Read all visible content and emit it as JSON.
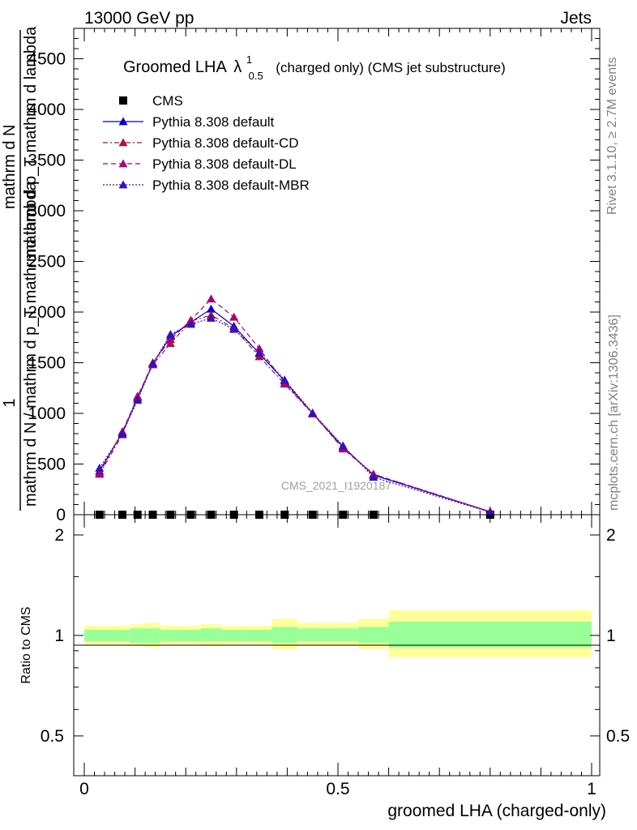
{
  "header": {
    "left": "13000 GeV pp",
    "right": "Jets"
  },
  "side_text": {
    "top": "Rivet 3.1.10, ≥ 2.7M events",
    "bottom": "mcplots.cern.ch [arXiv:1306.3436]"
  },
  "watermark": "CMS_2021_I1920187",
  "chart_data": [
    {
      "type": "line",
      "title_main": "Groomed LHA",
      "title_symbol": "λ",
      "title_sup": "1",
      "title_sub": "0.5",
      "title_rest": "(charged only) (CMS jet substructure)",
      "ylabel_top": "1",
      "ylabel_frac_num": "mathrm d N",
      "ylabel_frac_den": "mathrm d N / mathrm d p_T mathrmd lambda",
      "ylabel_right": "mathrm d p_T mathrm d lambda",
      "ylim": [
        0,
        4800
      ],
      "xlim": [
        0,
        1
      ],
      "yticks": [
        0,
        500,
        1000,
        1500,
        2000,
        2500,
        3000,
        3500,
        4000,
        4500
      ],
      "ytick_labels": [
        "0",
        "500",
        "1000",
        "1500",
        "2000",
        "2500",
        "3000",
        "3500",
        "4000",
        "4500"
      ],
      "legend_position": "top-left",
      "x": [
        0.03,
        0.075,
        0.105,
        0.135,
        0.17,
        0.21,
        0.25,
        0.295,
        0.345,
        0.395,
        0.45,
        0.51,
        0.57,
        0.8
      ],
      "series": [
        {
          "name": "CMS",
          "color": "#000000",
          "marker": "square",
          "style": "none",
          "values": [
            0,
            0,
            0,
            0,
            0,
            0,
            0,
            0,
            0,
            0,
            0,
            0,
            0,
            0
          ]
        },
        {
          "name": "Pythia 8.308 default",
          "color": "#0000cc",
          "marker": "triangle",
          "style": "solid",
          "values": [
            430,
            810,
            1150,
            1490,
            1760,
            1900,
            2030,
            1860,
            1590,
            1320,
            1000,
            670,
            390,
            30
          ]
        },
        {
          "name": "Pythia 8.308 default-CD",
          "color": "#aa1144",
          "marker": "triangle",
          "style": "dashdot",
          "values": [
            400,
            790,
            1170,
            1480,
            1690,
            1910,
            1970,
            1840,
            1560,
            1290,
            995,
            660,
            400,
            30
          ]
        },
        {
          "name": "Pythia 8.308 default-DL",
          "color": "#aa0077",
          "marker": "triangle",
          "style": "dashed",
          "values": [
            410,
            820,
            1160,
            1500,
            1730,
            1920,
            2130,
            1950,
            1640,
            1300,
            1000,
            650,
            400,
            30
          ]
        },
        {
          "name": "Pythia 8.308 default-MBR",
          "color": "#3311bb",
          "marker": "triangle",
          "style": "dotted",
          "values": [
            460,
            800,
            1130,
            1490,
            1780,
            1880,
            1940,
            1830,
            1600,
            1330,
            1005,
            680,
            370,
            25
          ]
        }
      ]
    },
    {
      "type": "area",
      "ylabel": "Ratio to CMS",
      "xlabel": "groomed LHA (charged-only)",
      "ylim": [
        0.38,
        2.3
      ],
      "scale": "log",
      "yticks": [
        0.5,
        1,
        2
      ],
      "ytick_labels": [
        "0.5",
        "1",
        "2"
      ],
      "xticks": [
        0,
        0.5,
        1
      ],
      "xtick_labels": [
        "0",
        "0.5",
        "1"
      ],
      "bins": [
        {
          "x0": 0.0,
          "x1": 0.06,
          "g": [
            0.96,
            1.04
          ],
          "y": [
            0.94,
            1.07
          ]
        },
        {
          "x0": 0.06,
          "x1": 0.09,
          "g": [
            0.96,
            1.04
          ],
          "y": [
            0.94,
            1.07
          ]
        },
        {
          "x0": 0.09,
          "x1": 0.12,
          "g": [
            0.95,
            1.05
          ],
          "y": [
            0.93,
            1.08
          ]
        },
        {
          "x0": 0.12,
          "x1": 0.15,
          "g": [
            0.95,
            1.05
          ],
          "y": [
            0.92,
            1.09
          ]
        },
        {
          "x0": 0.15,
          "x1": 0.19,
          "g": [
            0.96,
            1.04
          ],
          "y": [
            0.94,
            1.07
          ]
        },
        {
          "x0": 0.19,
          "x1": 0.23,
          "g": [
            0.96,
            1.04
          ],
          "y": [
            0.94,
            1.07
          ]
        },
        {
          "x0": 0.23,
          "x1": 0.27,
          "g": [
            0.96,
            1.05
          ],
          "y": [
            0.93,
            1.08
          ]
        },
        {
          "x0": 0.27,
          "x1": 0.32,
          "g": [
            0.96,
            1.04
          ],
          "y": [
            0.94,
            1.07
          ]
        },
        {
          "x0": 0.32,
          "x1": 0.37,
          "g": [
            0.96,
            1.04
          ],
          "y": [
            0.94,
            1.07
          ]
        },
        {
          "x0": 0.37,
          "x1": 0.42,
          "g": [
            0.95,
            1.06
          ],
          "y": [
            0.91,
            1.12
          ]
        },
        {
          "x0": 0.42,
          "x1": 0.48,
          "g": [
            0.96,
            1.05
          ],
          "y": [
            0.93,
            1.09
          ]
        },
        {
          "x0": 0.48,
          "x1": 0.54,
          "g": [
            0.96,
            1.05
          ],
          "y": [
            0.93,
            1.09
          ]
        },
        {
          "x0": 0.54,
          "x1": 0.6,
          "g": [
            0.95,
            1.06
          ],
          "y": [
            0.91,
            1.12
          ]
        },
        {
          "x0": 0.6,
          "x1": 1.0,
          "g": [
            0.92,
            1.1
          ],
          "y": [
            0.86,
            1.19
          ]
        }
      ]
    }
  ],
  "colors": {
    "band_inner": "#99ff99",
    "band_outer": "#ffff99"
  }
}
